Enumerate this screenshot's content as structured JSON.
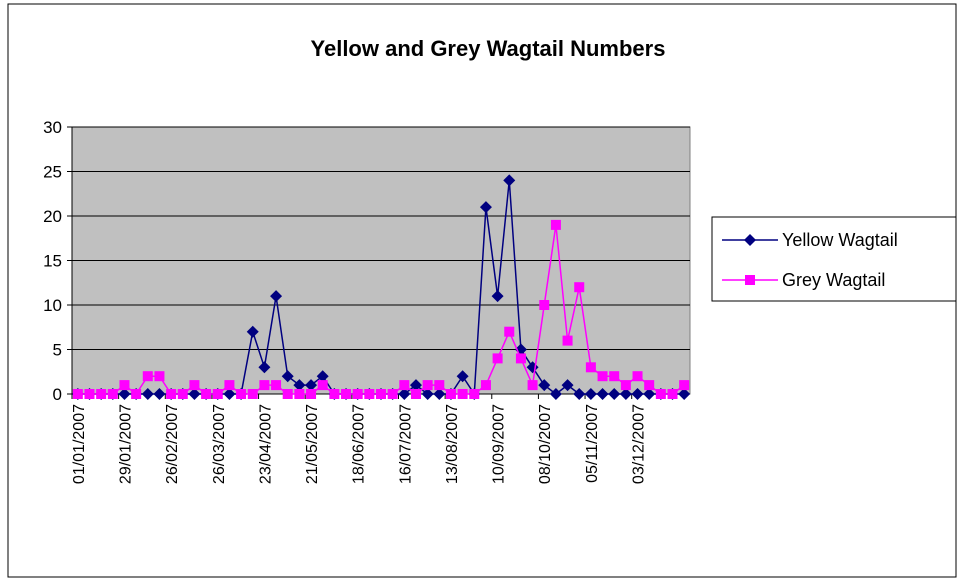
{
  "chart_data": {
    "type": "line",
    "title": "Yellow and Grey Wagtail Numbers",
    "categories": [
      "01/01/2007",
      null,
      null,
      null,
      "29/01/2007",
      null,
      null,
      null,
      "26/02/2007",
      null,
      null,
      null,
      "26/03/2007",
      null,
      null,
      null,
      "23/04/2007",
      null,
      null,
      null,
      "21/05/2007",
      null,
      null,
      null,
      "18/06/2007",
      null,
      null,
      null,
      "16/07/2007",
      null,
      null,
      null,
      "13/08/2007",
      null,
      null,
      null,
      "10/09/2007",
      null,
      null,
      null,
      "08/10/2007",
      null,
      null,
      null,
      "05/11/2007",
      null,
      null,
      null,
      "03/12/2007",
      null,
      null,
      null,
      null
    ],
    "series": [
      {
        "name": "Yellow Wagtail",
        "color": "#000080",
        "marker": "diamond",
        "values": [
          0,
          0,
          0,
          0,
          0,
          0,
          0,
          0,
          0,
          0,
          0,
          0,
          0,
          0,
          0,
          7,
          3,
          11,
          2,
          1,
          1,
          2,
          0,
          0,
          0,
          0,
          0,
          0,
          0,
          1,
          0,
          0,
          0,
          2,
          0,
          21,
          11,
          24,
          5,
          3,
          1,
          0,
          1,
          0,
          0,
          0,
          0,
          0,
          0,
          0,
          0,
          0,
          0
        ]
      },
      {
        "name": "Grey Wagtail",
        "color": "#ff00ff",
        "marker": "square",
        "values": [
          0,
          0,
          0,
          0,
          1,
          0,
          2,
          2,
          0,
          0,
          1,
          0,
          0,
          1,
          0,
          0,
          1,
          1,
          0,
          0,
          0,
          1,
          0,
          0,
          0,
          0,
          0,
          0,
          1,
          0,
          1,
          1,
          0,
          0,
          0,
          1,
          4,
          7,
          4,
          1,
          10,
          19,
          6,
          12,
          3,
          2,
          2,
          1,
          2,
          1,
          0,
          0,
          1
        ]
      }
    ],
    "ylim": [
      0,
      30
    ],
    "yticks": [
      0,
      5,
      10,
      15,
      20,
      25,
      30
    ],
    "grid": true,
    "legend": "right",
    "plot_background": "#c0c0c0"
  }
}
